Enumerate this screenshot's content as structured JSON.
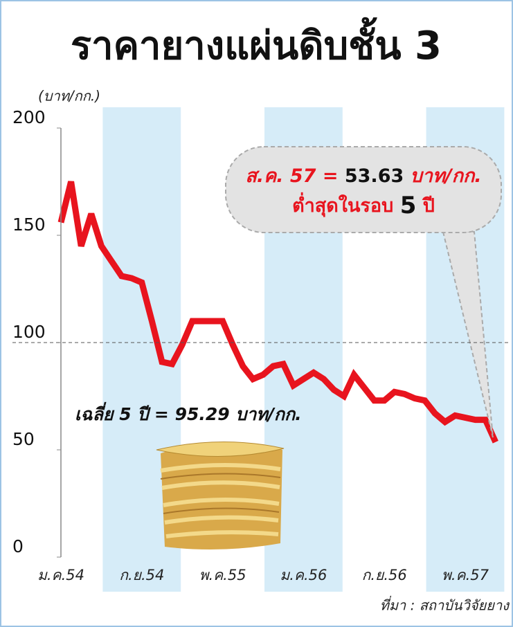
{
  "chart_data": {
    "type": "line",
    "title": "ราคายางแผ่นดิบชั้น 3",
    "y_label": "(บาท/กก.)",
    "categories": [
      "ม.ค.54",
      null,
      null,
      null,
      null,
      null,
      null,
      null,
      "ก.ย.54",
      null,
      null,
      null,
      null,
      null,
      null,
      null,
      "พ.ค.55",
      null,
      null,
      null,
      null,
      null,
      null,
      null,
      "ม.ค.56",
      null,
      null,
      null,
      null,
      null,
      null,
      null,
      "ก.ย.56",
      null,
      null,
      null,
      null,
      null,
      null,
      null,
      "พ.ค.57",
      null,
      null,
      null
    ],
    "series": [
      {
        "name": "ราคายางแผ่นดิบชั้น 3",
        "color": "#e8141e",
        "values": [
          156,
          175,
          145,
          160,
          145,
          138,
          131,
          130,
          128,
          110,
          91,
          90,
          99,
          110,
          110,
          110,
          110,
          99,
          89,
          83,
          85,
          89,
          90,
          80,
          83,
          86,
          83,
          78,
          75,
          85,
          79,
          73,
          73,
          77,
          76,
          74,
          73,
          67,
          63,
          66,
          65,
          64,
          64,
          53.63
        ]
      }
    ],
    "ylim": [
      0,
      200
    ],
    "yticks": [
      0,
      50,
      100,
      150,
      200
    ],
    "reference_line": 100,
    "callout": {
      "line1": [
        "ส.ค. 57 =",
        "53.63",
        "บาท/กก."
      ],
      "line2": [
        "ต่ำสุดในรอบ",
        "5",
        "ปี"
      ]
    },
    "average_note": "เฉลี่ย 5 ปี = 95.29 บาท/กก.",
    "source": "ที่มา : สถาบันวิจัยยาง"
  }
}
